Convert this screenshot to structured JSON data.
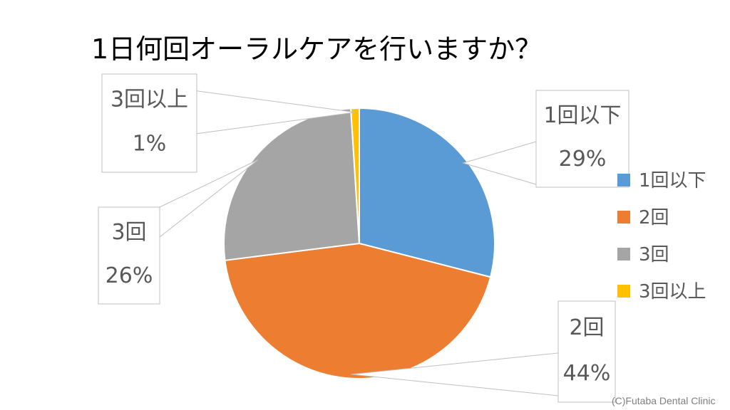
{
  "chart_data": {
    "type": "pie",
    "title": "1日何回オーラルケアを行いますか？",
    "categories": [
      "1回以下",
      "2回",
      "3回",
      "3回以上"
    ],
    "values": [
      29,
      44,
      26,
      1
    ],
    "labels": [
      "29%",
      "44%",
      "26%",
      "1%"
    ],
    "colors": [
      "#5B9BD5",
      "#ED7D31",
      "#A5A5A5",
      "#FFC000"
    ],
    "legend_position": "right"
  },
  "credit": "(C)Futaba Dental Clinic"
}
